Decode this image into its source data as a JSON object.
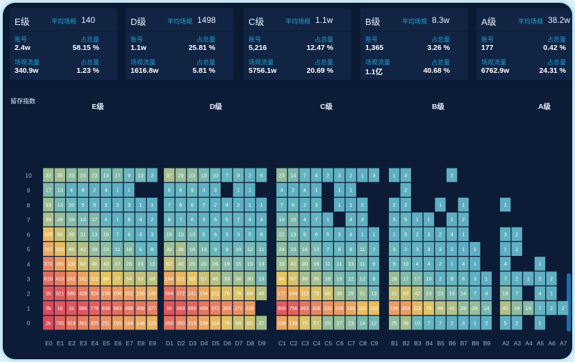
{
  "cards": [
    {
      "grade": "E级",
      "avg_label": "平均场规",
      "avg_value": "140",
      "l1": "账号",
      "v1": "2.4w",
      "l2": "占总量",
      "v2": "58.15 %",
      "l3": "场观流量",
      "v3": "340.9w",
      "l4": "占总量",
      "v4": "1.23 %"
    },
    {
      "grade": "D级",
      "avg_label": "平均场规",
      "avg_value": "1498",
      "l1": "账号",
      "v1": "1.1w",
      "l2": "占总量",
      "v2": "25.81 %",
      "l3": "场观流量",
      "v3": "1616.8w",
      "l4": "占总量",
      "v4": "5.81 %"
    },
    {
      "grade": "C级",
      "avg_label": "平均场规",
      "avg_value": "1.1w",
      "l1": "账号",
      "v1": "5,216",
      "l2": "占总量",
      "v2": "12.47 %",
      "l3": "场观流量",
      "v3": "5756.1w",
      "l4": "占总量",
      "v4": "20.69 %"
    },
    {
      "grade": "B级",
      "avg_label": "平均场规",
      "avg_value": "8.3w",
      "l1": "账号",
      "v1": "1,365",
      "l2": "占总量",
      "v2": "3.26 %",
      "l3": "场观流量",
      "v3": "1.1亿",
      "l4": "占总量",
      "v4": "40.68 %"
    },
    {
      "grade": "A级",
      "avg_label": "平均场规",
      "avg_value": "38.2w",
      "l1": "账号",
      "v1": "177",
      "l2": "占总量",
      "v2": "0.42 %",
      "l3": "场观流量",
      "v3": "6762.9w",
      "l4": "占总量",
      "v4": "24.31 %"
    }
  ],
  "chart_data": {
    "type": "heatmap",
    "ylabel": "留存指数",
    "y": [
      "0",
      "1",
      "2",
      "3",
      "4",
      "5",
      "6",
      "7",
      "8",
      "9",
      "10"
    ],
    "groups": [
      {
        "title": "E级",
        "columns": [
          "E0",
          "E1",
          "E2",
          "E3",
          "E4",
          "E5",
          "E6",
          "E7",
          "E8",
          "E9"
        ],
        "rows": [
          [
            "2k",
            "750",
            "519",
            "391",
            "325",
            "251",
            "195",
            "194",
            "148",
            "123"
          ],
          [
            "3k",
            "1k",
            "1k",
            "986",
            "778",
            "658",
            "583",
            "488",
            "458",
            "377"
          ],
          [
            "1k",
            "921",
            "580",
            "429",
            "324",
            "238",
            "208",
            "202",
            "150",
            "140"
          ],
          [
            "610",
            "410",
            "241",
            "182",
            "112",
            "84",
            "77",
            "54",
            "53",
            "48"
          ],
          [
            "372",
            "191",
            "130",
            "62",
            "48",
            "43",
            "37",
            "26",
            "23",
            "13"
          ],
          [
            "157",
            "102",
            "46",
            "42",
            "28",
            "23",
            "11",
            "18",
            "6",
            "8"
          ],
          [
            "105",
            "56",
            "39",
            "21",
            "13",
            "19",
            "7",
            "6",
            "4",
            "3"
          ],
          [
            "39",
            "28",
            "19",
            "13",
            "17",
            "6",
            "1",
            "8",
            "4",
            "2"
          ],
          [
            "33",
            "13",
            "10",
            "5",
            "5",
            "2",
            "3",
            "3",
            "1",
            "1"
          ],
          [
            "17",
            "13",
            "4",
            "8",
            "2",
            "4",
            "1",
            "1",
            "",
            ""
          ],
          [
            "32",
            "35",
            "23",
            "24",
            "23",
            "13",
            "17",
            "9",
            "13",
            "3"
          ]
        ]
      },
      {
        "title": "D级",
        "columns": [
          "D1",
          "D2",
          "D3",
          "D4",
          "D5",
          "D6",
          "D7",
          "D8",
          "D9"
        ],
        "rows": [
          [
            "550",
            "355",
            "219",
            "158",
            "114",
            "79",
            "58",
            "65",
            "37"
          ],
          [
            "1k",
            "893",
            "660",
            "489",
            "372",
            "303",
            "272",
            "218",
            ""
          ],
          [
            "564",
            "372",
            "241",
            "154",
            "112",
            "76",
            "76",
            "66",
            "45"
          ],
          [
            "164",
            "121",
            "83",
            "57",
            "46",
            "33",
            "34",
            "30",
            "13"
          ],
          [
            "62",
            "40",
            "29",
            "20",
            "26",
            "19",
            "15",
            "15",
            "13"
          ],
          [
            "32",
            "36",
            "18",
            "13",
            "9",
            "9",
            "10",
            "12",
            "11"
          ],
          [
            "16",
            "13",
            "13",
            "5",
            "6",
            "3",
            "3",
            "5",
            "8"
          ],
          [
            "8",
            "7",
            "6",
            "3",
            "6",
            "5",
            "7",
            "4",
            "3"
          ],
          [
            "7",
            "6",
            "6",
            "7",
            "2",
            "4",
            "2",
            "1",
            "1"
          ],
          [
            "6",
            "6",
            "9",
            "3",
            "3",
            "",
            "1",
            "1",
            ""
          ],
          [
            "37",
            "29",
            "23",
            "13",
            "10",
            "7",
            "9",
            "2",
            "6"
          ]
        ]
      },
      {
        "title": "C级",
        "columns": [
          "C1",
          "C2",
          "C3",
          "C4",
          "C5",
          "C6",
          "C7",
          "C8",
          "C9"
        ],
        "rows": [
          [
            "158",
            "139",
            "75",
            "57",
            "25",
            "27",
            "23",
            "14",
            "12"
          ],
          [
            "906",
            "758",
            "463",
            "328",
            "232",
            "205",
            "166",
            "102",
            "102"
          ],
          [
            "177",
            "144",
            "112",
            "73",
            "66",
            "38",
            "25",
            "31",
            "13"
          ],
          [
            "84",
            "67",
            "36",
            "36",
            "18",
            "15",
            "12",
            "12",
            "8"
          ],
          [
            "33",
            "41",
            "30",
            "19",
            "11",
            "11",
            "13",
            "11",
            "6"
          ],
          [
            "24",
            "15",
            "16",
            "13",
            "7",
            "8",
            "8",
            "11",
            "7"
          ],
          [
            "21",
            "13",
            "9",
            "6",
            "5",
            "3",
            "4",
            "1",
            "1"
          ],
          [
            "10",
            "15",
            "4",
            "7",
            "1",
            "",
            "4",
            "3",
            ""
          ],
          [
            "7",
            "6",
            "2",
            "3",
            "",
            "1",
            "1",
            "2",
            ""
          ],
          [
            "4",
            "2",
            "4",
            "1",
            "",
            "1",
            "1",
            "",
            ""
          ],
          [
            "23",
            "14",
            "7",
            "4",
            "2",
            "3",
            "2",
            "1",
            "3"
          ]
        ]
      },
      {
        "title": "B级",
        "columns": [
          "B1",
          "B2",
          "B3",
          "B4",
          "B5",
          "B6",
          "B7",
          "B8",
          "B9"
        ],
        "rows": [
          [
            "25",
            "36",
            "10",
            "7",
            "7",
            "2",
            "3",
            "1",
            "2"
          ],
          [
            "195",
            "203",
            "113",
            "78",
            "46",
            "42",
            "28",
            "28",
            "14"
          ],
          [
            "51",
            "63",
            "42",
            "24",
            "23",
            "13",
            "14",
            "7",
            "4"
          ],
          [
            "28",
            "17",
            "17",
            "10",
            "2",
            "9",
            "6",
            "3",
            "1"
          ],
          [
            "9",
            "10",
            "4",
            "4",
            "2",
            "1",
            "4",
            "1",
            ""
          ],
          [
            "9",
            "2",
            "3",
            "3",
            "3",
            "2",
            "1",
            "1",
            ""
          ],
          [
            "1",
            "5",
            "2",
            "3",
            "2",
            "4",
            "1",
            "",
            ""
          ],
          [
            "5",
            "5",
            "1",
            "1",
            "",
            "1",
            "2",
            "",
            ""
          ],
          [
            "2",
            "2",
            "",
            "",
            "1",
            "",
            "1",
            "",
            ""
          ],
          [
            "",
            "2",
            "",
            "",
            "",
            "",
            "",
            "",
            ""
          ],
          [
            "1",
            "4",
            "",
            "",
            "",
            "2",
            "",
            "",
            ""
          ]
        ]
      },
      {
        "title": "A级",
        "columns": [
          "A2",
          "A3",
          "A4",
          "A5",
          "A6",
          "A7"
        ],
        "rows": [
          [
            "5",
            "2",
            "",
            "1",
            "",
            ""
          ],
          [
            "42",
            "24",
            "19",
            "7",
            "2",
            "2"
          ],
          [
            "19",
            "7",
            "",
            "4",
            "1",
            ""
          ],
          [
            "7",
            "2",
            "1",
            "2",
            "2",
            ""
          ],
          [
            "4",
            "",
            "",
            "1",
            "",
            ""
          ],
          [
            "1",
            "2",
            "",
            "",
            "",
            ""
          ],
          [
            "3",
            "2",
            "",
            "",
            "",
            ""
          ],
          [
            "",
            "",
            "",
            "",
            "",
            ""
          ],
          [
            "1",
            "",
            "",
            "",
            "",
            ""
          ],
          [
            "",
            "",
            "",
            "",
            "",
            ""
          ],
          [
            "",
            "",
            "",
            "",
            "",
            ""
          ]
        ]
      }
    ]
  }
}
